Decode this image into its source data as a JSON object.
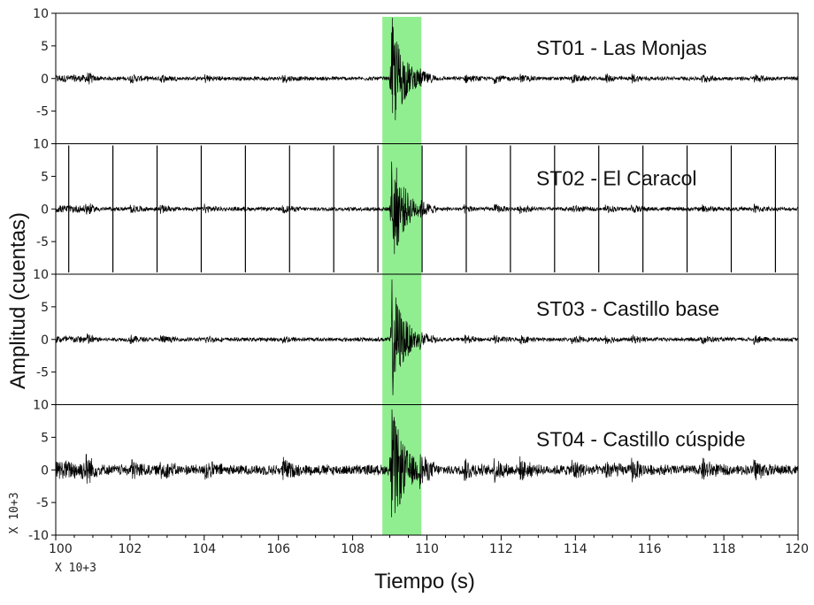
{
  "chart_data": {
    "type": "line",
    "xlabel": "Tiempo (s)",
    "ylabel": "Amplitud (cuentas)",
    "x_multiplier_label": "X 10+3",
    "y_multiplier_label": "X 10+3",
    "xlim": [
      100,
      120
    ],
    "ylim": [
      -10,
      10
    ],
    "x_ticks": [
      100,
      102,
      104,
      106,
      108,
      110,
      112,
      114,
      116,
      118,
      120
    ],
    "y_tick_labels": [
      "10",
      "5",
      "0",
      "-5",
      "-10"
    ],
    "highlight_window": {
      "x_start": 108.8,
      "x_end": 109.85,
      "color": "#90ee90"
    },
    "event_onset_x": 109.05,
    "panels": [
      {
        "name": "ST01 - Las Monjas",
        "noise_amplitude": 0.35,
        "event_peak": 9.5,
        "spike_interval": 0
      },
      {
        "name": "ST02 - El Caracol",
        "noise_amplitude": 0.35,
        "event_peak": 9.5,
        "spike_interval": 1.19
      },
      {
        "name": "ST03 - Castillo base",
        "noise_amplitude": 0.35,
        "event_peak": 9.5,
        "spike_interval": 0
      },
      {
        "name": "ST04 - Castillo cúspide",
        "noise_amplitude": 0.9,
        "event_peak": 9.5,
        "spike_interval": 0
      }
    ],
    "grid": false,
    "trace_color": "#000000"
  }
}
